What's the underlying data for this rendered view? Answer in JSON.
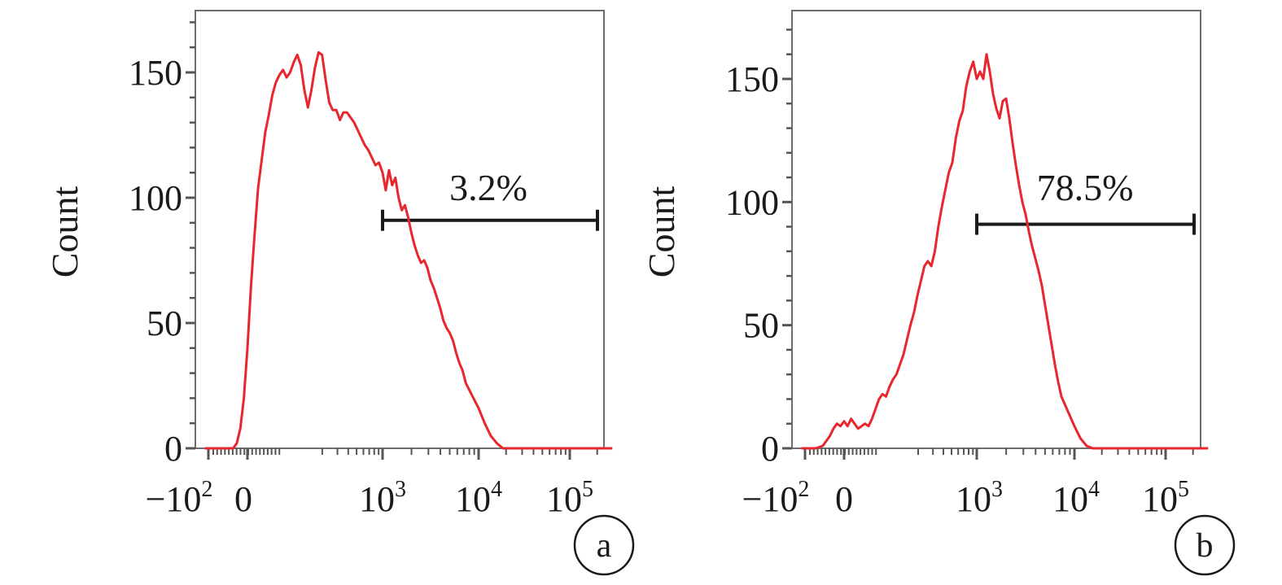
{
  "chart_data": [
    {
      "type": "line",
      "panel_label": "a",
      "ylabel": "Count",
      "ylim": [
        0,
        172
      ],
      "yticks": [
        {
          "value": 0,
          "label": "0"
        },
        {
          "value": 50,
          "label": "50"
        },
        {
          "value": 100,
          "label": "100"
        },
        {
          "value": 150,
          "label": "150"
        }
      ],
      "x_scale": "biexponential",
      "xticks": [
        {
          "label": "−10",
          "sup": "2"
        },
        {
          "label": "0",
          "sup": ""
        },
        {
          "label": "10",
          "sup": "3"
        },
        {
          "label": "10",
          "sup": "4"
        },
        {
          "label": "10",
          "sup": "5"
        }
      ],
      "gate": {
        "label": "3.2%",
        "start_tick": 2,
        "end_tick": 4,
        "level": 91
      },
      "series": [
        {
          "color": "#e8262d",
          "points": [
            [
              -0.6,
              0
            ],
            [
              -0.45,
              0
            ],
            [
              -0.3,
              0
            ],
            [
              -0.2,
              0
            ],
            [
              -0.15,
              2
            ],
            [
              -0.1,
              8
            ],
            [
              -0.05,
              20
            ],
            [
              0,
              40
            ],
            [
              0.05,
              65
            ],
            [
              0.1,
              85
            ],
            [
              0.15,
              104
            ],
            [
              0.2,
              115
            ],
            [
              0.25,
              126
            ],
            [
              0.3,
              133
            ],
            [
              0.35,
              141
            ],
            [
              0.4,
              146
            ],
            [
              0.45,
              149
            ],
            [
              0.5,
              151
            ],
            [
              0.55,
              148
            ],
            [
              0.6,
              150
            ],
            [
              0.65,
              154
            ],
            [
              0.7,
              157
            ],
            [
              0.75,
              153
            ],
            [
              0.8,
              143
            ],
            [
              0.85,
              136
            ],
            [
              0.9,
              143
            ],
            [
              0.95,
              152
            ],
            [
              1.0,
              158
            ],
            [
              1.05,
              157
            ],
            [
              1.1,
              147
            ],
            [
              1.15,
              138
            ],
            [
              1.2,
              135
            ],
            [
              1.25,
              135
            ],
            [
              1.3,
              131
            ],
            [
              1.35,
              134
            ],
            [
              1.4,
              134
            ],
            [
              1.45,
              132
            ],
            [
              1.5,
              130
            ],
            [
              1.55,
              127
            ],
            [
              1.6,
              124
            ],
            [
              1.65,
              121
            ],
            [
              1.7,
              119
            ],
            [
              1.75,
              116
            ],
            [
              1.8,
              113
            ],
            [
              1.85,
              114
            ],
            [
              1.9,
              110
            ],
            [
              1.95,
              103
            ],
            [
              2.0,
              111
            ],
            [
              2.05,
              105
            ],
            [
              2.1,
              108
            ],
            [
              2.15,
              100
            ],
            [
              2.2,
              95
            ],
            [
              2.25,
              97
            ],
            [
              2.3,
              92
            ],
            [
              2.35,
              86
            ],
            [
              2.4,
              81
            ],
            [
              2.45,
              77
            ],
            [
              2.5,
              74
            ],
            [
              2.55,
              75
            ],
            [
              2.6,
              72
            ],
            [
              2.65,
              67
            ],
            [
              2.7,
              64
            ],
            [
              2.75,
              60
            ],
            [
              2.8,
              56
            ],
            [
              2.85,
              51
            ],
            [
              2.9,
              48
            ],
            [
              2.95,
              46
            ],
            [
              3.0,
              43
            ],
            [
              3.05,
              38
            ],
            [
              3.1,
              34
            ],
            [
              3.15,
              31
            ],
            [
              3.2,
              26
            ],
            [
              3.3,
              21
            ],
            [
              3.4,
              16
            ],
            [
              3.5,
              10
            ],
            [
              3.6,
              5
            ],
            [
              3.7,
              2
            ],
            [
              3.8,
              0
            ],
            [
              4.0,
              0
            ],
            [
              4.5,
              0
            ],
            [
              5.0,
              0
            ],
            [
              5.6,
              0
            ]
          ]
        }
      ]
    },
    {
      "type": "line",
      "panel_label": "b",
      "ylabel": "Count",
      "ylim": [
        0,
        172
      ],
      "yticks": [
        {
          "value": 0,
          "label": "0"
        },
        {
          "value": 50,
          "label": "50"
        },
        {
          "value": 100,
          "label": "100"
        },
        {
          "value": 150,
          "label": "150"
        }
      ],
      "x_scale": "biexponential",
      "xticks": [
        {
          "label": "−10",
          "sup": "2"
        },
        {
          "label": "0",
          "sup": ""
        },
        {
          "label": "10",
          "sup": "3"
        },
        {
          "label": "10",
          "sup": "4"
        },
        {
          "label": "10",
          "sup": "5"
        }
      ],
      "gate": {
        "label": "78.5%",
        "start_tick": 2,
        "end_tick": 4,
        "level": 91
      },
      "series": [
        {
          "color": "#e8262d",
          "points": [
            [
              -0.6,
              0
            ],
            [
              -0.4,
              0
            ],
            [
              -0.3,
              1
            ],
            [
              -0.25,
              3
            ],
            [
              -0.2,
              5
            ],
            [
              -0.15,
              8
            ],
            [
              -0.1,
              10
            ],
            [
              -0.05,
              9
            ],
            [
              0,
              11
            ],
            [
              0.05,
              9
            ],
            [
              0.1,
              12
            ],
            [
              0.15,
              10
            ],
            [
              0.2,
              8
            ],
            [
              0.25,
              9
            ],
            [
              0.3,
              10
            ],
            [
              0.35,
              9
            ],
            [
              0.4,
              12
            ],
            [
              0.45,
              16
            ],
            [
              0.5,
              20
            ],
            [
              0.55,
              22
            ],
            [
              0.6,
              21
            ],
            [
              0.65,
              25
            ],
            [
              0.7,
              28
            ],
            [
              0.75,
              30
            ],
            [
              0.8,
              34
            ],
            [
              0.85,
              38
            ],
            [
              0.9,
              44
            ],
            [
              0.95,
              50
            ],
            [
              1.0,
              55
            ],
            [
              1.05,
              62
            ],
            [
              1.1,
              68
            ],
            [
              1.15,
              74
            ],
            [
              1.2,
              76
            ],
            [
              1.25,
              74
            ],
            [
              1.3,
              80
            ],
            [
              1.35,
              90
            ],
            [
              1.4,
              98
            ],
            [
              1.45,
              105
            ],
            [
              1.5,
              112
            ],
            [
              1.55,
              116
            ],
            [
              1.6,
              126
            ],
            [
              1.65,
              133
            ],
            [
              1.7,
              137
            ],
            [
              1.75,
              147
            ],
            [
              1.8,
              153
            ],
            [
              1.85,
              157
            ],
            [
              1.9,
              150
            ],
            [
              1.95,
              153
            ],
            [
              2.0,
              150
            ],
            [
              2.05,
              160
            ],
            [
              2.1,
              153
            ],
            [
              2.15,
              144
            ],
            [
              2.2,
              138
            ],
            [
              2.25,
              134
            ],
            [
              2.3,
              141
            ],
            [
              2.35,
              142
            ],
            [
              2.4,
              134
            ],
            [
              2.45,
              124
            ],
            [
              2.5,
              115
            ],
            [
              2.55,
              107
            ],
            [
              2.6,
              100
            ],
            [
              2.65,
              95
            ],
            [
              2.7,
              88
            ],
            [
              2.75,
              82
            ],
            [
              2.8,
              77
            ],
            [
              2.85,
              72
            ],
            [
              2.9,
              66
            ],
            [
              2.95,
              58
            ],
            [
              3.0,
              50
            ],
            [
              3.05,
              42
            ],
            [
              3.1,
              34
            ],
            [
              3.15,
              27
            ],
            [
              3.2,
              21
            ],
            [
              3.3,
              15
            ],
            [
              3.4,
              9
            ],
            [
              3.5,
              4
            ],
            [
              3.6,
              1
            ],
            [
              3.7,
              0
            ],
            [
              4.0,
              0
            ],
            [
              4.5,
              0
            ],
            [
              5.0,
              0
            ],
            [
              5.6,
              0
            ]
          ]
        }
      ]
    }
  ]
}
